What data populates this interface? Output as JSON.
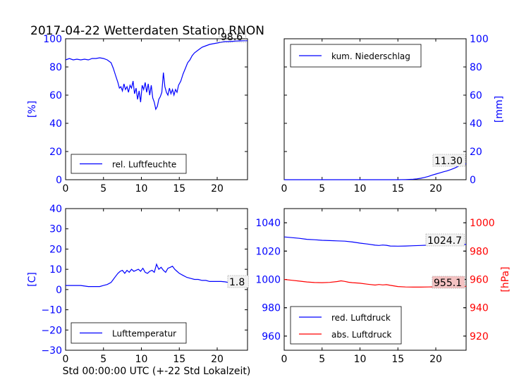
{
  "figure": {
    "title": "2017-04-22 Wetterdaten Station RNON",
    "xlabel": "Std 00:00:00 UTC (+-22 Std Lokalzeit)"
  },
  "colors": {
    "blue": "#0000ff",
    "red": "#ff0000",
    "annot_bg": "#f2f2f2",
    "annot_bg_red": "#f4c2c2"
  },
  "chart_data": [
    {
      "id": "humidity",
      "type": "line",
      "ylabel": "[%]",
      "xlim": [
        0,
        24
      ],
      "ylim": [
        0,
        100
      ],
      "xticks": [
        "0",
        "5",
        "10",
        "15",
        "20"
      ],
      "yticks": [
        "0",
        "20",
        "40",
        "60",
        "80",
        "100"
      ],
      "legend": "bottom-left",
      "annotation": "98.6",
      "series": [
        {
          "name": "rel. Luftfeuchte",
          "color": "#0000ff",
          "x": [
            0,
            0.5,
            1,
            1.5,
            2,
            2.5,
            3,
            3.5,
            4,
            4.5,
            5,
            5.5,
            6,
            6.3,
            6.6,
            6.9,
            7.1,
            7.3,
            7.5,
            7.7,
            7.9,
            8.1,
            8.3,
            8.5,
            8.7,
            8.9,
            9.1,
            9.3,
            9.5,
            9.7,
            9.9,
            10.1,
            10.3,
            10.5,
            10.7,
            10.9,
            11.1,
            11.3,
            11.5,
            11.7,
            11.9,
            12.1,
            12.3,
            12.5,
            12.7,
            12.9,
            13.1,
            13.3,
            13.5,
            13.7,
            13.9,
            14.1,
            14.3,
            14.5,
            14.7,
            14.9,
            15.2,
            15.5,
            15.8,
            16.1,
            16.4,
            16.7,
            17,
            17.5,
            18,
            18.5,
            19,
            19.5,
            20,
            20.5,
            21,
            21.5,
            22,
            22.5,
            23,
            23.5,
            24
          ],
          "values": [
            85,
            86,
            85,
            85.5,
            85,
            85.5,
            85,
            86,
            86,
            86.5,
            86,
            85,
            83,
            79,
            74,
            69,
            65,
            66,
            63,
            68,
            64,
            66,
            62,
            67,
            65,
            70,
            61,
            65,
            57,
            63,
            55,
            67,
            64,
            69,
            62,
            68,
            60,
            67,
            58,
            55,
            50,
            52,
            57,
            59,
            62,
            76,
            66,
            62,
            60,
            65,
            61,
            64,
            60,
            64,
            62,
            67,
            70,
            75,
            79,
            83,
            85,
            88,
            90,
            92,
            94,
            95,
            96,
            96.5,
            97,
            97.5,
            98,
            98,
            98.2,
            98.4,
            98.5,
            98.6,
            98.6
          ]
        }
      ]
    },
    {
      "id": "precip",
      "type": "line",
      "ylabel": "[mm]",
      "xlim": [
        0,
        24
      ],
      "ylim": [
        0,
        100
      ],
      "xticks": [
        "0",
        "5",
        "10",
        "15",
        "20"
      ],
      "yticks": [
        "0",
        "20",
        "40",
        "60",
        "80",
        "100"
      ],
      "legend": "top-left",
      "annotation": "11.30",
      "series": [
        {
          "name": "kum. Niederschlag",
          "color": "#0000ff",
          "x": [
            0,
            15,
            16,
            17,
            17.5,
            18,
            18.5,
            19,
            19.5,
            20,
            20.5,
            21,
            21.5,
            22,
            22.5,
            23,
            23.5,
            24
          ],
          "values": [
            0,
            0,
            0.1,
            0.3,
            0.6,
            1,
            1.6,
            2.3,
            3.2,
            4,
            4.8,
            5.6,
            6.3,
            7.2,
            8.3,
            9.6,
            10.6,
            11.3
          ]
        }
      ]
    },
    {
      "id": "temperature",
      "type": "line",
      "ylabel": "[C]",
      "xlim": [
        0,
        24
      ],
      "ylim": [
        -30,
        40
      ],
      "xticks": [
        "0",
        "5",
        "10",
        "15",
        "20"
      ],
      "yticks": [
        "−30",
        "−20",
        "−10",
        "0",
        "10",
        "20",
        "30",
        "40"
      ],
      "legend": "bottom-left",
      "annotation": "1.8",
      "series": [
        {
          "name": "Lufttemperatur",
          "color": "#0000ff",
          "x": [
            0,
            1,
            2,
            3,
            3.5,
            4,
            4.5,
            5,
            5.5,
            6,
            6.3,
            6.6,
            6.9,
            7.2,
            7.5,
            7.8,
            8.1,
            8.4,
            8.7,
            9,
            9.3,
            9.6,
            9.9,
            10.2,
            10.5,
            10.8,
            11.1,
            11.4,
            11.7,
            12,
            12.3,
            12.6,
            12.9,
            13.2,
            13.5,
            13.8,
            14.1,
            14.4,
            14.7,
            15,
            15.5,
            16,
            16.5,
            17,
            17.5,
            18,
            18.5,
            19,
            19.5,
            20,
            20.5,
            21,
            21.5,
            22,
            22.5,
            23,
            23.5,
            24
          ],
          "values": [
            2,
            2,
            2,
            1.5,
            1.5,
            1.5,
            1.5,
            2,
            2.5,
            3.5,
            5,
            6.5,
            8,
            9,
            9.5,
            8,
            9.5,
            8.5,
            10,
            9,
            9.5,
            10,
            9,
            10.5,
            8.5,
            8,
            9,
            9.5,
            8.5,
            12.5,
            10,
            11,
            9.5,
            8.5,
            10.5,
            11,
            11.5,
            10,
            9,
            8,
            7,
            6,
            5.5,
            5,
            5,
            4.5,
            4.5,
            4,
            4,
            4,
            4,
            3.8,
            3.5,
            3,
            2.7,
            2.5,
            2,
            1.8
          ]
        }
      ]
    },
    {
      "id": "pressure",
      "type": "line",
      "ylabel": "[hPa]",
      "xlim": [
        0,
        24
      ],
      "ylim": [
        950,
        1050
      ],
      "ylim_right": [
        910,
        1010
      ],
      "xticks": [
        "0",
        "5",
        "10",
        "15",
        "20"
      ],
      "yticks": [
        "960",
        "980",
        "1000",
        "1020",
        "1040"
      ],
      "yticks_right": [
        "920",
        "940",
        "960",
        "980",
        "1000"
      ],
      "legend": "bottom-left",
      "annotation": "1024.7",
      "annotation_right": "955.1",
      "series": [
        {
          "name": "red. Luftdruck",
          "color": "#0000ff",
          "axis": "left",
          "x": [
            0,
            1,
            2,
            3,
            4,
            5,
            6,
            7,
            8,
            9,
            10,
            11,
            12,
            12.5,
            13,
            13.5,
            14,
            15,
            16,
            17,
            18,
            19,
            20,
            21,
            22,
            23,
            24
          ],
          "values": [
            1030,
            1029.5,
            1029,
            1028.3,
            1028,
            1027.6,
            1027.4,
            1027.2,
            1027,
            1026.4,
            1025.6,
            1025,
            1024.2,
            1024,
            1024.3,
            1024.1,
            1023.6,
            1023.5,
            1023.6,
            1023.8,
            1024,
            1024.2,
            1024.4,
            1024.5,
            1024.6,
            1024.7,
            1024.7
          ]
        },
        {
          "name": "abs. Luftdruck",
          "color": "#ff0000",
          "axis": "right",
          "x": [
            0,
            1,
            2,
            3,
            4,
            5,
            6,
            7,
            7.5,
            8,
            8.5,
            9,
            10,
            11,
            12,
            12.5,
            13,
            13.5,
            14,
            15,
            16,
            17,
            18,
            19,
            20,
            21,
            22,
            23,
            24
          ],
          "values": [
            960,
            959.4,
            958.8,
            958.2,
            957.8,
            957.7,
            957.9,
            958.5,
            959,
            958.6,
            958,
            957.7,
            957.3,
            956.6,
            956,
            956.4,
            956.1,
            956.3,
            955.8,
            955,
            954.7,
            954.6,
            954.6,
            954.7,
            954.8,
            954.9,
            955,
            955.1,
            955.1
          ]
        }
      ]
    }
  ]
}
